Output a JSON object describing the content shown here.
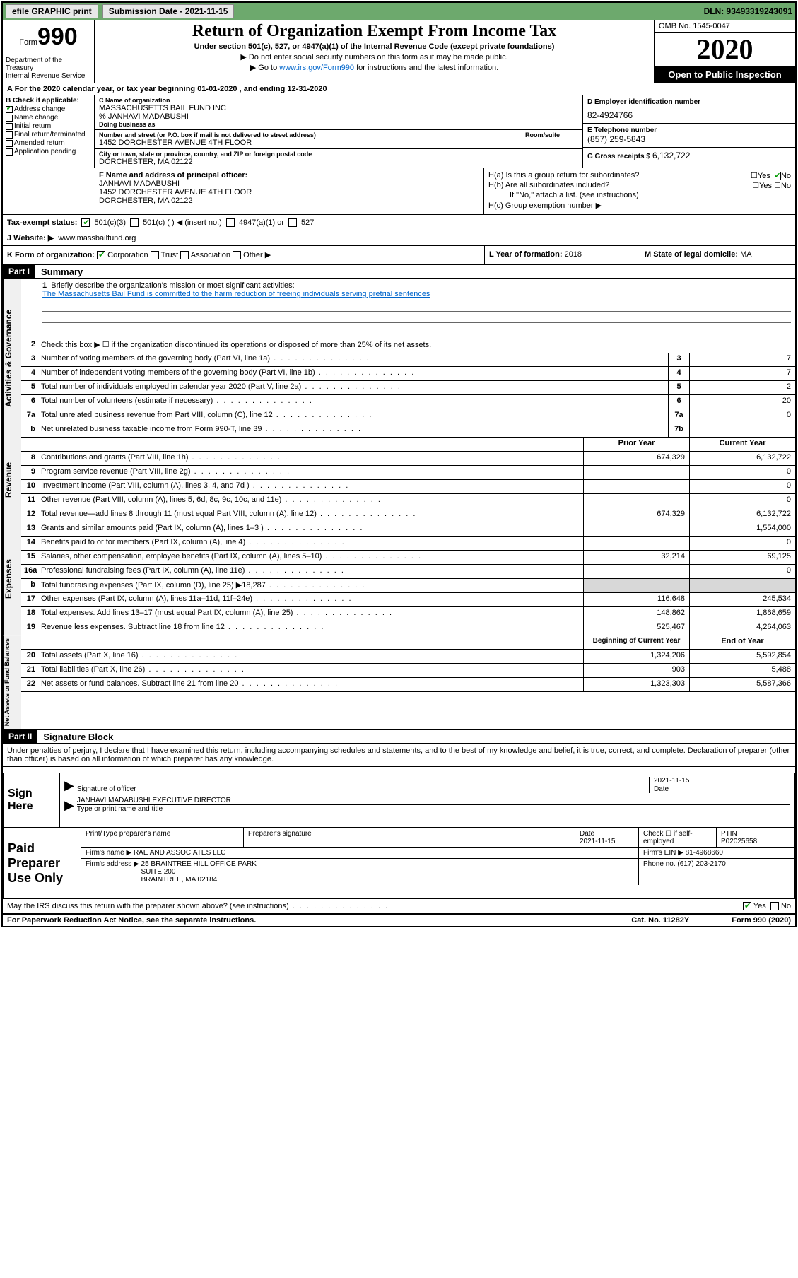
{
  "toolbar": {
    "efile_label": "efile GRAPHIC print",
    "submission_label": "Submission Date - 2021-11-15",
    "dln_label": "DLN: 93493319243091"
  },
  "header": {
    "form_word": "Form",
    "form_num": "990",
    "dept": "Department of the Treasury\nInternal Revenue Service",
    "title": "Return of Organization Exempt From Income Tax",
    "subtitle": "Under section 501(c), 527, or 4947(a)(1) of the Internal Revenue Code (except private foundations)",
    "note1": "▶ Do not enter social security numbers on this form as it may be made public.",
    "note2_pre": "▶ Go to ",
    "note2_link": "www.irs.gov/Form990",
    "note2_post": " for instructions and the latest information.",
    "omb": "OMB No. 1545-0047",
    "year": "2020",
    "open_pub": "Open to Public Inspection"
  },
  "line_a": "A For the 2020 calendar year, or tax year beginning 01-01-2020   , and ending 12-31-2020",
  "box_b": {
    "header": "B Check if applicable:",
    "items": [
      {
        "label": "Address change",
        "checked": true
      },
      {
        "label": "Name change",
        "checked": false
      },
      {
        "label": "Initial return",
        "checked": false
      },
      {
        "label": "Final return/terminated",
        "checked": false
      },
      {
        "label": "Amended return",
        "checked": false
      },
      {
        "label": "Application pending",
        "checked": false
      }
    ]
  },
  "box_c": {
    "name_label": "C Name of organization",
    "name": "MASSACHUSETTS BAIL FUND INC",
    "care_of": "% JANHAVI MADABUSHI",
    "dba_label": "Doing business as",
    "addr_label": "Number and street (or P.O. box if mail is not delivered to street address)",
    "room_label": "Room/suite",
    "addr": "1452 DORCHESTER AVENUE 4TH FLOOR",
    "city_label": "City or town, state or province, country, and ZIP or foreign postal code",
    "city": "DORCHESTER, MA  02122"
  },
  "box_d": {
    "label": "D Employer identification number",
    "val": "82-4924766"
  },
  "box_e": {
    "label": "E Telephone number",
    "val": "(857) 259-5843"
  },
  "box_g": {
    "label": "G Gross receipts $",
    "val": "6,132,722"
  },
  "box_f": {
    "label": "F Name and address of principal officer:",
    "name": "JANHAVI MADABUSHI",
    "addr": "1452 DORCHESTER AVENUE 4TH FLOOR",
    "city": "DORCHESTER, MA  02122"
  },
  "box_h": {
    "a": "H(a)  Is this a group return for subordinates?",
    "a_yes": "Yes",
    "a_no": "No",
    "b": "H(b)  Are all subordinates included?",
    "b_yes": "Yes",
    "b_no": "No",
    "b_note": "If \"No,\" attach a list. (see instructions)",
    "c": "H(c)  Group exemption number ▶"
  },
  "box_i": {
    "label": "Tax-exempt status:",
    "opt1": "501(c)(3)",
    "opt2": "501(c) (  ) ◀ (insert no.)",
    "opt3": "4947(a)(1) or",
    "opt4": "527"
  },
  "box_j": {
    "label": "J   Website: ▶",
    "val": "www.massbailfund.org"
  },
  "box_k": {
    "label": "K Form of organization:",
    "corp": "Corporation",
    "trust": "Trust",
    "assoc": "Association",
    "other": "Other ▶"
  },
  "box_l": {
    "label": "L Year of formation:",
    "val": "2018"
  },
  "box_m": {
    "label": "M State of legal domicile:",
    "val": "MA"
  },
  "part1": {
    "label": "Part I",
    "title": "Summary"
  },
  "s1": {
    "q": "Briefly describe the organization's mission or most significant activities:",
    "a": "The Massachusetts Bail Fund is committed to the harm reduction of freeing individuals serving pretrial sentences"
  },
  "s2": "Check this box ▶ ☐  if the organization discontinued its operations or disposed of more than 25% of its net assets.",
  "lines_gov": [
    {
      "n": "3",
      "t": "Number of voting members of the governing body (Part VI, line 1a)",
      "box": "3",
      "v": "7"
    },
    {
      "n": "4",
      "t": "Number of independent voting members of the governing body (Part VI, line 1b)",
      "box": "4",
      "v": "7"
    },
    {
      "n": "5",
      "t": "Total number of individuals employed in calendar year 2020 (Part V, line 2a)",
      "box": "5",
      "v": "2"
    },
    {
      "n": "6",
      "t": "Total number of volunteers (estimate if necessary)",
      "box": "6",
      "v": "20"
    },
    {
      "n": "7a",
      "t": "Total unrelated business revenue from Part VIII, column (C), line 12",
      "box": "7a",
      "v": "0"
    },
    {
      "n": "b",
      "t": "Net unrelated business taxable income from Form 990-T, line 39",
      "box": "7b",
      "v": ""
    }
  ],
  "col_hdr": {
    "prior": "Prior Year",
    "current": "Current Year"
  },
  "rev": [
    {
      "n": "8",
      "t": "Contributions and grants (Part VIII, line 1h)",
      "p": "674,329",
      "c": "6,132,722"
    },
    {
      "n": "9",
      "t": "Program service revenue (Part VIII, line 2g)",
      "p": "",
      "c": "0"
    },
    {
      "n": "10",
      "t": "Investment income (Part VIII, column (A), lines 3, 4, and 7d )",
      "p": "",
      "c": "0"
    },
    {
      "n": "11",
      "t": "Other revenue (Part VIII, column (A), lines 5, 6d, 8c, 9c, 10c, and 11e)",
      "p": "",
      "c": "0"
    },
    {
      "n": "12",
      "t": "Total revenue—add lines 8 through 11 (must equal Part VIII, column (A), line 12)",
      "p": "674,329",
      "c": "6,132,722"
    }
  ],
  "exp": [
    {
      "n": "13",
      "t": "Grants and similar amounts paid (Part IX, column (A), lines 1–3 )",
      "p": "",
      "c": "1,554,000"
    },
    {
      "n": "14",
      "t": "Benefits paid to or for members (Part IX, column (A), line 4)",
      "p": "",
      "c": "0"
    },
    {
      "n": "15",
      "t": "Salaries, other compensation, employee benefits (Part IX, column (A), lines 5–10)",
      "p": "32,214",
      "c": "69,125"
    },
    {
      "n": "16a",
      "t": "Professional fundraising fees (Part IX, column (A), line 11e)",
      "p": "",
      "c": "0"
    },
    {
      "n": "b",
      "t": "Total fundraising expenses (Part IX, column (D), line 25) ▶18,287",
      "p": "GREY",
      "c": "GREY"
    },
    {
      "n": "17",
      "t": "Other expenses (Part IX, column (A), lines 11a–11d, 11f–24e)",
      "p": "116,648",
      "c": "245,534"
    },
    {
      "n": "18",
      "t": "Total expenses. Add lines 13–17 (must equal Part IX, column (A), line 25)",
      "p": "148,862",
      "c": "1,868,659"
    },
    {
      "n": "19",
      "t": "Revenue less expenses. Subtract line 18 from line 12",
      "p": "525,467",
      "c": "4,264,063"
    }
  ],
  "na_hdr": {
    "begin": "Beginning of Current Year",
    "end": "End of Year"
  },
  "na": [
    {
      "n": "20",
      "t": "Total assets (Part X, line 16)",
      "p": "1,324,206",
      "c": "5,592,854"
    },
    {
      "n": "21",
      "t": "Total liabilities (Part X, line 26)",
      "p": "903",
      "c": "5,488"
    },
    {
      "n": "22",
      "t": "Net assets or fund balances. Subtract line 21 from line 20",
      "p": "1,323,303",
      "c": "5,587,366"
    }
  ],
  "part2": {
    "label": "Part II",
    "title": "Signature Block"
  },
  "perjury": "Under penalties of perjury, I declare that I have examined this return, including accompanying schedules and statements, and to the best of my knowledge and belief, it is true, correct, and complete. Declaration of preparer (other than officer) is based on all information of which preparer has any knowledge.",
  "sign": {
    "here": "Sign Here",
    "sig_label": "Signature of officer",
    "date_label": "Date",
    "date_val": "2021-11-15",
    "name_val": "JANHAVI MADABUSHI  EXECUTIVE DIRECTOR",
    "name_label": "Type or print name and title"
  },
  "prep": {
    "left": "Paid Preparer Use Only",
    "r1": {
      "c1_label": "Print/Type preparer's name",
      "c1": "",
      "c2_label": "Preparer's signature",
      "c2": "",
      "c3_label": "Date",
      "c3": "2021-11-15",
      "c4_label": "Check ☐ if self-employed",
      "c5_label": "PTIN",
      "c5": "P02025658"
    },
    "r2": {
      "label": "Firm's name    ▶",
      "val": "RAE AND ASSOCIATES LLC",
      "ein_label": "Firm's EIN ▶",
      "ein": "81-4968660"
    },
    "r3": {
      "label": "Firm's address ▶",
      "val": "25 BRAINTREE HILL OFFICE PARK\nSUITE 200\nBRAINTREE, MA  02184",
      "ph_label": "Phone no.",
      "ph": "(617) 203-2170"
    }
  },
  "discuss": {
    "q": "May the IRS discuss this return with the preparer shown above? (see instructions)",
    "yes": "Yes",
    "no": "No"
  },
  "footer": {
    "left": "For Paperwork Reduction Act Notice, see the separate instructions.",
    "mid": "Cat. No. 11282Y",
    "right": "Form 990 (2020)"
  }
}
